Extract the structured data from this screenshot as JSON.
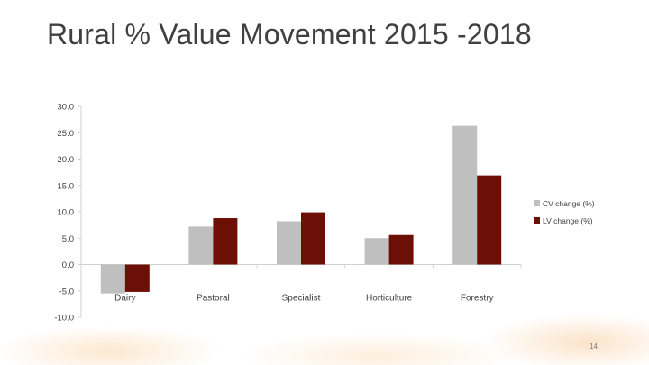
{
  "slide": {
    "title": "Rural % Value Movement 2015 -2018",
    "page_number": "14"
  },
  "chart_data": {
    "type": "bar",
    "title": "",
    "xlabel": "",
    "ylabel": "",
    "categories": [
      "Dairy",
      "Pastoral",
      "Specialist",
      "Horticulture",
      "Forestry"
    ],
    "series": [
      {
        "name": "CV change (%)",
        "values": [
          -5.5,
          7.2,
          8.2,
          5.0,
          26.3
        ],
        "color": "#bfbfbf"
      },
      {
        "name": "LV change (%)",
        "values": [
          -5.2,
          8.8,
          9.9,
          5.6,
          16.9
        ],
        "color": "#6b0f07"
      }
    ],
    "ylim": [
      -10,
      30
    ],
    "yticks": [
      "30.0",
      "25.0",
      "20.0",
      "15.0",
      "10.0",
      "5.0",
      "0.0",
      "-5.0",
      "-10.0"
    ],
    "ytick_values": [
      30,
      25,
      20,
      15,
      10,
      5,
      0,
      -5,
      -10
    ],
    "grid": false,
    "legend_position": "right"
  }
}
